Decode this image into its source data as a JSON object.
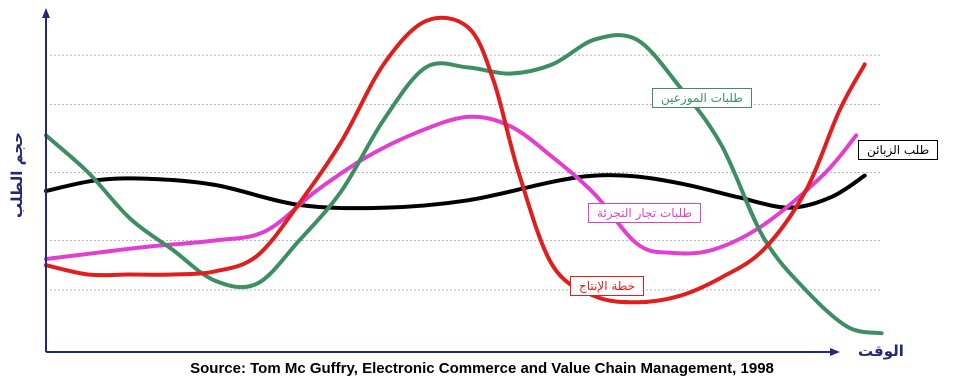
{
  "chart_data": {
    "type": "line",
    "title": "",
    "xlabel": "الوقت",
    "ylabel": "حجم الطلب",
    "source": "Source: Tom Mc Guffry, Electronic Commerce and Value Chain Management, 1998",
    "xlim": [
      0,
      100
    ],
    "ylim": [
      0,
      100
    ],
    "grid": true,
    "gridlines_y": [
      12,
      28,
      50,
      72,
      88
    ],
    "series": [
      {
        "name": "طلب الزبائن",
        "color": "#000000",
        "x": [
          0,
          6,
          12,
          20,
          30,
          40,
          50,
          60,
          65,
          70,
          76,
          82,
          88,
          93,
          97
        ],
        "y": [
          44,
          47.5,
          48,
          46,
          39.5,
          38.6,
          41,
          47,
          49,
          48.7,
          46,
          42,
          38.6,
          42,
          49
        ]
      },
      {
        "name": "طلبات تجار التجزئة",
        "color": "#e23fd0",
        "x": [
          0,
          6,
          12,
          20,
          26,
          32,
          38,
          44,
          50,
          55,
          60,
          65,
          70,
          74,
          79,
          85,
          92,
          96
        ],
        "y": [
          22,
          24,
          26,
          28,
          31,
          44,
          55,
          63,
          68,
          65,
          55,
          43,
          27,
          24,
          25,
          33,
          49,
          62
        ]
      },
      {
        "name": "طلبات الموزعين",
        "color": "#3d8f63",
        "x": [
          0,
          5,
          10,
          15,
          20,
          25,
          30,
          35,
          40,
          45,
          50,
          55,
          60,
          65,
          70,
          75,
          80,
          85,
          90,
          95,
          99
        ],
        "y": [
          62,
          50,
          35,
          25,
          15,
          14,
          28,
          44,
          67,
          84,
          84,
          82,
          85,
          93,
          93,
          78,
          59,
          29,
          12,
          0,
          -2
        ]
      },
      {
        "name": "خطة الإنتاج",
        "color": "#e01e1e",
        "x": [
          0,
          5,
          10,
          15,
          20,
          25,
          30,
          35,
          40,
          45,
          50,
          53,
          56,
          60,
          65,
          70,
          75,
          80,
          85,
          90,
          94,
          97
        ],
        "y": [
          20,
          17,
          17,
          17,
          18,
          23,
          40,
          60,
          85,
          99,
          97,
          80,
          50,
          20,
          10,
          8,
          10,
          16,
          25,
          44,
          70,
          85
        ]
      }
    ],
    "labels": [
      {
        "series": 2,
        "text": "طلبات الموزعين"
      },
      {
        "series": 0,
        "text": "طلب الزبائن"
      },
      {
        "series": 1,
        "text": "طلبات تجار التجزئة"
      },
      {
        "series": 3,
        "text": "خطة الإنتاج"
      }
    ]
  }
}
